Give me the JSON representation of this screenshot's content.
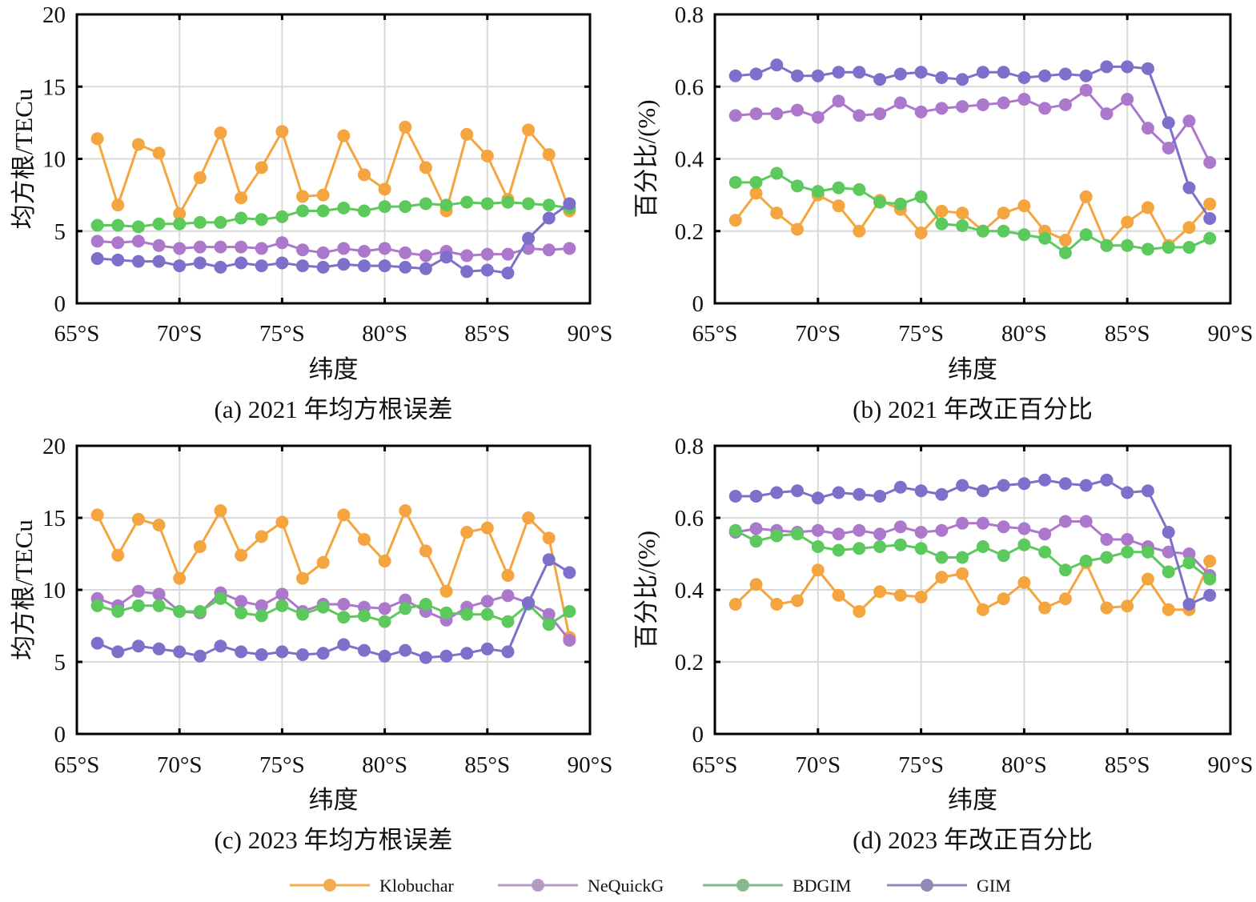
{
  "series_styles": [
    {
      "name": "Klobuchar",
      "color": "#F5A540",
      "legend_color": "#F2AE4E"
    },
    {
      "name": "NeQuickG",
      "color": "#AC78CC",
      "legend_color": "#B49AC4"
    },
    {
      "name": "BDGIM",
      "color": "#5CC95C",
      "legend_color": "#86B98F"
    },
    {
      "name": "GIM",
      "color": "#7C70CA",
      "legend_color": "#9488B8"
    }
  ],
  "legend": {
    "placement": "bottom-center",
    "entries": [
      "Klobuchar",
      "NeQuickG",
      "BDGIM",
      "GIM"
    ]
  },
  "chart_data": [
    {
      "id": "a",
      "type": "line",
      "title": "(a) 2021 年均方根误差",
      "xlabel": "纬度",
      "ylabel": "均方根/TECu",
      "x": [
        66,
        67,
        68,
        69,
        70,
        71,
        72,
        73,
        74,
        75,
        76,
        77,
        78,
        79,
        80,
        81,
        82,
        83,
        84,
        85,
        86,
        87,
        88,
        89
      ],
      "xlim": [
        65,
        90
      ],
      "xticks": [
        65,
        70,
        75,
        80,
        85,
        90
      ],
      "xtick_labels": [
        "65°S",
        "70°S",
        "75°S",
        "80°S",
        "85°S",
        "90°S"
      ],
      "ylim": [
        0,
        20
      ],
      "yticks": [
        0,
        5,
        10,
        15,
        20
      ],
      "ytick_labels": [
        "0",
        "5",
        "10",
        "15",
        "20"
      ],
      "grid": true,
      "series": [
        {
          "name": "Klobuchar",
          "values": [
            11.4,
            6.8,
            11.0,
            10.4,
            6.2,
            8.7,
            11.8,
            7.3,
            9.4,
            11.9,
            7.4,
            7.5,
            11.6,
            8.9,
            7.9,
            12.2,
            9.4,
            6.4,
            11.7,
            10.2,
            7.2,
            12.0,
            10.3,
            6.4
          ]
        },
        {
          "name": "NeQuickG",
          "values": [
            4.3,
            4.2,
            4.3,
            4.0,
            3.8,
            3.9,
            3.9,
            3.9,
            3.8,
            4.2,
            3.7,
            3.5,
            3.8,
            3.6,
            3.8,
            3.5,
            3.3,
            3.6,
            3.3,
            3.4,
            3.4,
            3.8,
            3.7,
            3.8
          ]
        },
        {
          "name": "BDGIM",
          "values": [
            5.4,
            5.4,
            5.3,
            5.5,
            5.5,
            5.6,
            5.6,
            5.9,
            5.8,
            6.0,
            6.4,
            6.4,
            6.6,
            6.4,
            6.7,
            6.7,
            6.9,
            6.8,
            7.0,
            6.9,
            7.0,
            6.9,
            6.8,
            6.6
          ]
        },
        {
          "name": "GIM",
          "values": [
            3.1,
            3.0,
            2.9,
            2.9,
            2.6,
            2.8,
            2.5,
            2.8,
            2.6,
            2.8,
            2.6,
            2.5,
            2.7,
            2.6,
            2.6,
            2.5,
            2.4,
            3.2,
            2.2,
            2.3,
            2.1,
            4.5,
            5.9,
            6.9
          ]
        }
      ]
    },
    {
      "id": "b",
      "type": "line",
      "title": "(b) 2021 年改正百分比",
      "xlabel": "纬度",
      "ylabel": "百分比/(%)",
      "x": [
        66,
        67,
        68,
        69,
        70,
        71,
        72,
        73,
        74,
        75,
        76,
        77,
        78,
        79,
        80,
        81,
        82,
        83,
        84,
        85,
        86,
        87,
        88,
        89
      ],
      "xlim": [
        65,
        90
      ],
      "xticks": [
        65,
        70,
        75,
        80,
        85,
        90
      ],
      "xtick_labels": [
        "65°S",
        "70°S",
        "75°S",
        "80°S",
        "85°S",
        "90°S"
      ],
      "ylim": [
        0,
        0.8
      ],
      "yticks": [
        0,
        0.2,
        0.4,
        0.6,
        0.8
      ],
      "ytick_labels": [
        "0",
        "0.2",
        "0.4",
        "0.6",
        "0.8"
      ],
      "grid": true,
      "series": [
        {
          "name": "Klobuchar",
          "values": [
            0.23,
            0.305,
            0.25,
            0.205,
            0.3,
            0.27,
            0.2,
            0.285,
            0.26,
            0.195,
            0.255,
            0.25,
            0.2,
            0.25,
            0.27,
            0.2,
            0.175,
            0.295,
            0.16,
            0.225,
            0.265,
            0.16,
            0.21,
            0.275
          ]
        },
        {
          "name": "NeQuickG",
          "values": [
            0.52,
            0.525,
            0.525,
            0.535,
            0.515,
            0.56,
            0.52,
            0.525,
            0.555,
            0.53,
            0.54,
            0.545,
            0.55,
            0.555,
            0.565,
            0.54,
            0.55,
            0.59,
            0.525,
            0.565,
            0.485,
            0.43,
            0.505,
            0.39
          ]
        },
        {
          "name": "BDGIM",
          "values": [
            0.335,
            0.335,
            0.36,
            0.325,
            0.31,
            0.32,
            0.315,
            0.28,
            0.275,
            0.295,
            0.22,
            0.215,
            0.2,
            0.2,
            0.19,
            0.18,
            0.14,
            0.19,
            0.16,
            0.16,
            0.15,
            0.155,
            0.155,
            0.18
          ]
        },
        {
          "name": "GIM",
          "values": [
            0.63,
            0.635,
            0.66,
            0.63,
            0.63,
            0.64,
            0.64,
            0.62,
            0.635,
            0.64,
            0.625,
            0.62,
            0.64,
            0.64,
            0.625,
            0.63,
            0.635,
            0.63,
            0.655,
            0.655,
            0.65,
            0.5,
            0.32,
            0.235
          ]
        }
      ]
    },
    {
      "id": "c",
      "type": "line",
      "title": "(c) 2023 年均方根误差",
      "xlabel": "纬度",
      "ylabel": "均方根/TECu",
      "x": [
        66,
        67,
        68,
        69,
        70,
        71,
        72,
        73,
        74,
        75,
        76,
        77,
        78,
        79,
        80,
        81,
        82,
        83,
        84,
        85,
        86,
        87,
        88,
        89
      ],
      "xlim": [
        65,
        90
      ],
      "xticks": [
        65,
        70,
        75,
        80,
        85,
        90
      ],
      "xtick_labels": [
        "65°S",
        "70°S",
        "75°S",
        "80°S",
        "85°S",
        "90°S"
      ],
      "ylim": [
        0,
        20
      ],
      "yticks": [
        0,
        5,
        10,
        15,
        20
      ],
      "ytick_labels": [
        "0",
        "5",
        "10",
        "15",
        "20"
      ],
      "grid": true,
      "series": [
        {
          "name": "Klobuchar",
          "values": [
            15.2,
            12.4,
            14.9,
            14.5,
            10.8,
            13.0,
            15.5,
            12.4,
            13.7,
            14.7,
            10.8,
            11.9,
            15.2,
            13.5,
            12.0,
            15.5,
            12.7,
            9.9,
            14.0,
            14.3,
            11.0,
            15.0,
            13.6,
            6.7
          ]
        },
        {
          "name": "NeQuickG",
          "values": [
            9.4,
            8.9,
            9.9,
            9.7,
            8.5,
            8.4,
            9.8,
            9.2,
            8.9,
            9.7,
            8.5,
            9.0,
            9.0,
            8.8,
            8.7,
            9.3,
            8.5,
            7.9,
            8.8,
            9.2,
            9.6,
            9.1,
            8.3,
            6.5
          ]
        },
        {
          "name": "BDGIM",
          "values": [
            8.9,
            8.5,
            8.9,
            8.9,
            8.5,
            8.5,
            9.4,
            8.4,
            8.2,
            8.9,
            8.3,
            8.8,
            8.1,
            8.2,
            7.8,
            8.7,
            9.0,
            8.4,
            8.3,
            8.3,
            7.8,
            9.0,
            7.6,
            8.5
          ]
        },
        {
          "name": "GIM",
          "values": [
            6.3,
            5.7,
            6.1,
            5.9,
            5.7,
            5.4,
            6.1,
            5.7,
            5.5,
            5.7,
            5.5,
            5.6,
            6.2,
            5.8,
            5.4,
            5.8,
            5.3,
            5.4,
            5.6,
            5.9,
            5.7,
            9.1,
            12.1,
            11.2
          ]
        }
      ]
    },
    {
      "id": "d",
      "type": "line",
      "title": "(d) 2023 年改正百分比",
      "xlabel": "纬度",
      "ylabel": "百分比/(%)",
      "x": [
        66,
        67,
        68,
        69,
        70,
        71,
        72,
        73,
        74,
        75,
        76,
        77,
        78,
        79,
        80,
        81,
        82,
        83,
        84,
        85,
        86,
        87,
        88,
        89
      ],
      "xlim": [
        65,
        90
      ],
      "xticks": [
        65,
        70,
        75,
        80,
        85,
        90
      ],
      "xtick_labels": [
        "65°S",
        "70°S",
        "75°S",
        "80°S",
        "85°S",
        "90°S"
      ],
      "ylim": [
        0,
        0.8
      ],
      "yticks": [
        0,
        0.2,
        0.4,
        0.6,
        0.8
      ],
      "ytick_labels": [
        "0",
        "0.2",
        "0.4",
        "0.6",
        "0.8"
      ],
      "grid": true,
      "series": [
        {
          "name": "Klobuchar",
          "values": [
            0.36,
            0.415,
            0.36,
            0.37,
            0.455,
            0.385,
            0.34,
            0.395,
            0.385,
            0.38,
            0.435,
            0.445,
            0.345,
            0.375,
            0.42,
            0.35,
            0.375,
            0.475,
            0.35,
            0.355,
            0.43,
            0.345,
            0.345,
            0.48
          ]
        },
        {
          "name": "NeQuickG",
          "values": [
            0.56,
            0.57,
            0.565,
            0.56,
            0.565,
            0.555,
            0.565,
            0.555,
            0.575,
            0.56,
            0.565,
            0.585,
            0.585,
            0.575,
            0.57,
            0.555,
            0.59,
            0.59,
            0.54,
            0.54,
            0.52,
            0.505,
            0.5,
            0.44
          ]
        },
        {
          "name": "BDGIM",
          "values": [
            0.565,
            0.535,
            0.55,
            0.555,
            0.52,
            0.51,
            0.515,
            0.52,
            0.525,
            0.515,
            0.49,
            0.49,
            0.52,
            0.495,
            0.525,
            0.505,
            0.455,
            0.48,
            0.49,
            0.505,
            0.505,
            0.45,
            0.475,
            0.43
          ]
        },
        {
          "name": "GIM",
          "values": [
            0.66,
            0.66,
            0.67,
            0.675,
            0.655,
            0.67,
            0.665,
            0.66,
            0.685,
            0.675,
            0.665,
            0.69,
            0.675,
            0.69,
            0.695,
            0.705,
            0.695,
            0.69,
            0.705,
            0.67,
            0.675,
            0.56,
            0.36,
            0.385
          ]
        }
      ]
    }
  ]
}
